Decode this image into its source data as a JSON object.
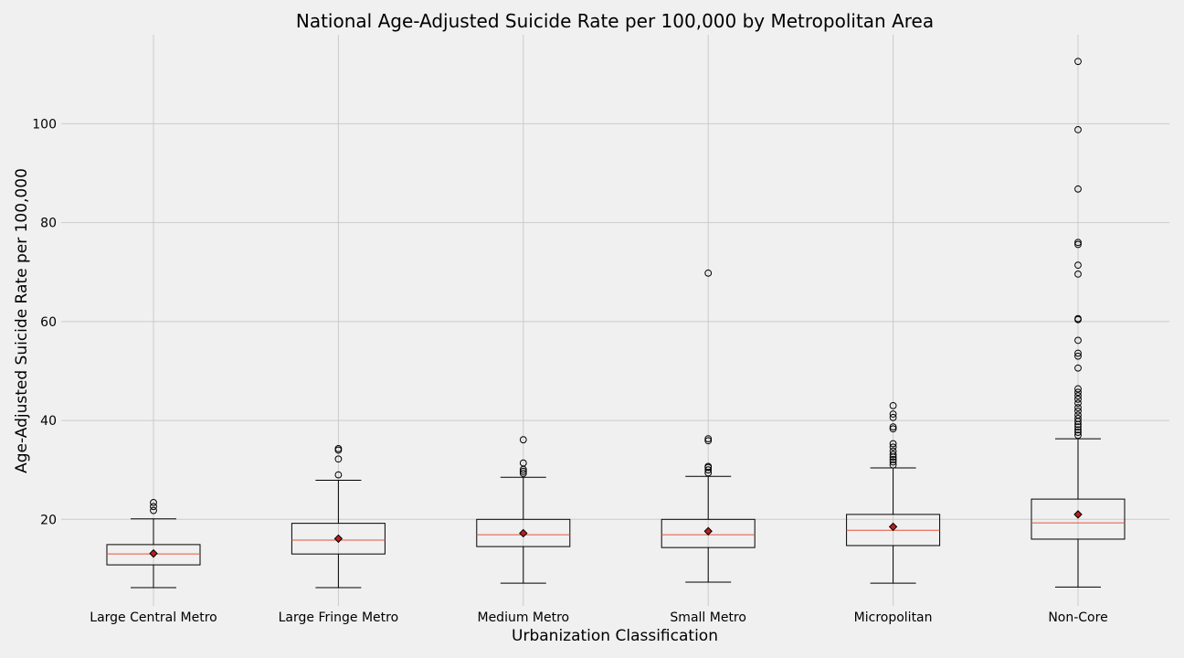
{
  "chart_data": {
    "type": "box",
    "title": "National Age-Adjusted Suicide Rate per 100,000 by Metropolitan Area",
    "xlabel": "Urbanization Classification",
    "ylabel": "Age-Adjusted Suicide Rate per 100,000",
    "ylim": [
      2.5,
      118
    ],
    "yticks": [
      20,
      40,
      60,
      80,
      100
    ],
    "grid": true,
    "colors": {
      "background": "#f0f0f0",
      "grid": "#cbcbcb",
      "median": "#e5533d",
      "mean": "#b22222",
      "box": "#000000"
    },
    "categories": [
      "Large Central Metro",
      "Large Fringe Metro",
      "Medium Metro",
      "Small Metro",
      "Micropolitan",
      "Non-Core"
    ],
    "boxes": [
      {
        "name": "Large Central Metro",
        "whisker_low": 6.2,
        "q1": 10.8,
        "median": 13.0,
        "q3": 14.9,
        "whisker_high": 20.1,
        "mean": 13.1,
        "outliers": [
          21.8,
          22.6,
          23.4
        ]
      },
      {
        "name": "Large Fringe Metro",
        "whisker_low": 6.2,
        "q1": 13.0,
        "median": 15.8,
        "q3": 19.2,
        "whisker_high": 27.9,
        "mean": 16.1,
        "outliers": [
          29.0,
          32.2,
          34.0,
          34.3
        ]
      },
      {
        "name": "Medium Metro",
        "whisker_low": 7.1,
        "q1": 14.5,
        "median": 16.9,
        "q3": 20.0,
        "whisker_high": 28.5,
        "mean": 17.2,
        "outliers": [
          29.3,
          29.7,
          30.1,
          31.4,
          36.1
        ]
      },
      {
        "name": "Small Metro",
        "whisker_low": 7.3,
        "q1": 14.3,
        "median": 16.9,
        "q3": 20.0,
        "whisker_high": 28.7,
        "mean": 17.6,
        "outliers": [
          29.4,
          30.0,
          30.5,
          30.7,
          35.9,
          36.3,
          69.8
        ]
      },
      {
        "name": "Micropolitan",
        "whisker_low": 7.1,
        "q1": 14.7,
        "median": 17.8,
        "q3": 21.0,
        "whisker_high": 30.4,
        "mean": 18.5,
        "outliers": [
          31.0,
          31.6,
          32.1,
          32.6,
          33.1,
          33.8,
          34.6,
          35.3,
          38.3,
          38.7,
          40.6,
          41.3,
          43.0
        ]
      },
      {
        "name": "Non-Core",
        "whisker_low": 6.3,
        "q1": 16.0,
        "median": 19.3,
        "q3": 24.1,
        "whisker_high": 36.3,
        "mean": 21.0,
        "outliers": [
          37.0,
          37.6,
          38.1,
          38.7,
          39.2,
          39.8,
          40.4,
          41.1,
          41.9,
          42.6,
          43.5,
          44.3,
          45.0,
          45.7,
          46.4,
          50.6,
          53.0,
          53.6,
          56.2,
          60.4,
          60.6,
          69.6,
          71.4,
          75.6,
          76.0,
          86.8,
          98.8,
          112.6
        ]
      }
    ]
  }
}
